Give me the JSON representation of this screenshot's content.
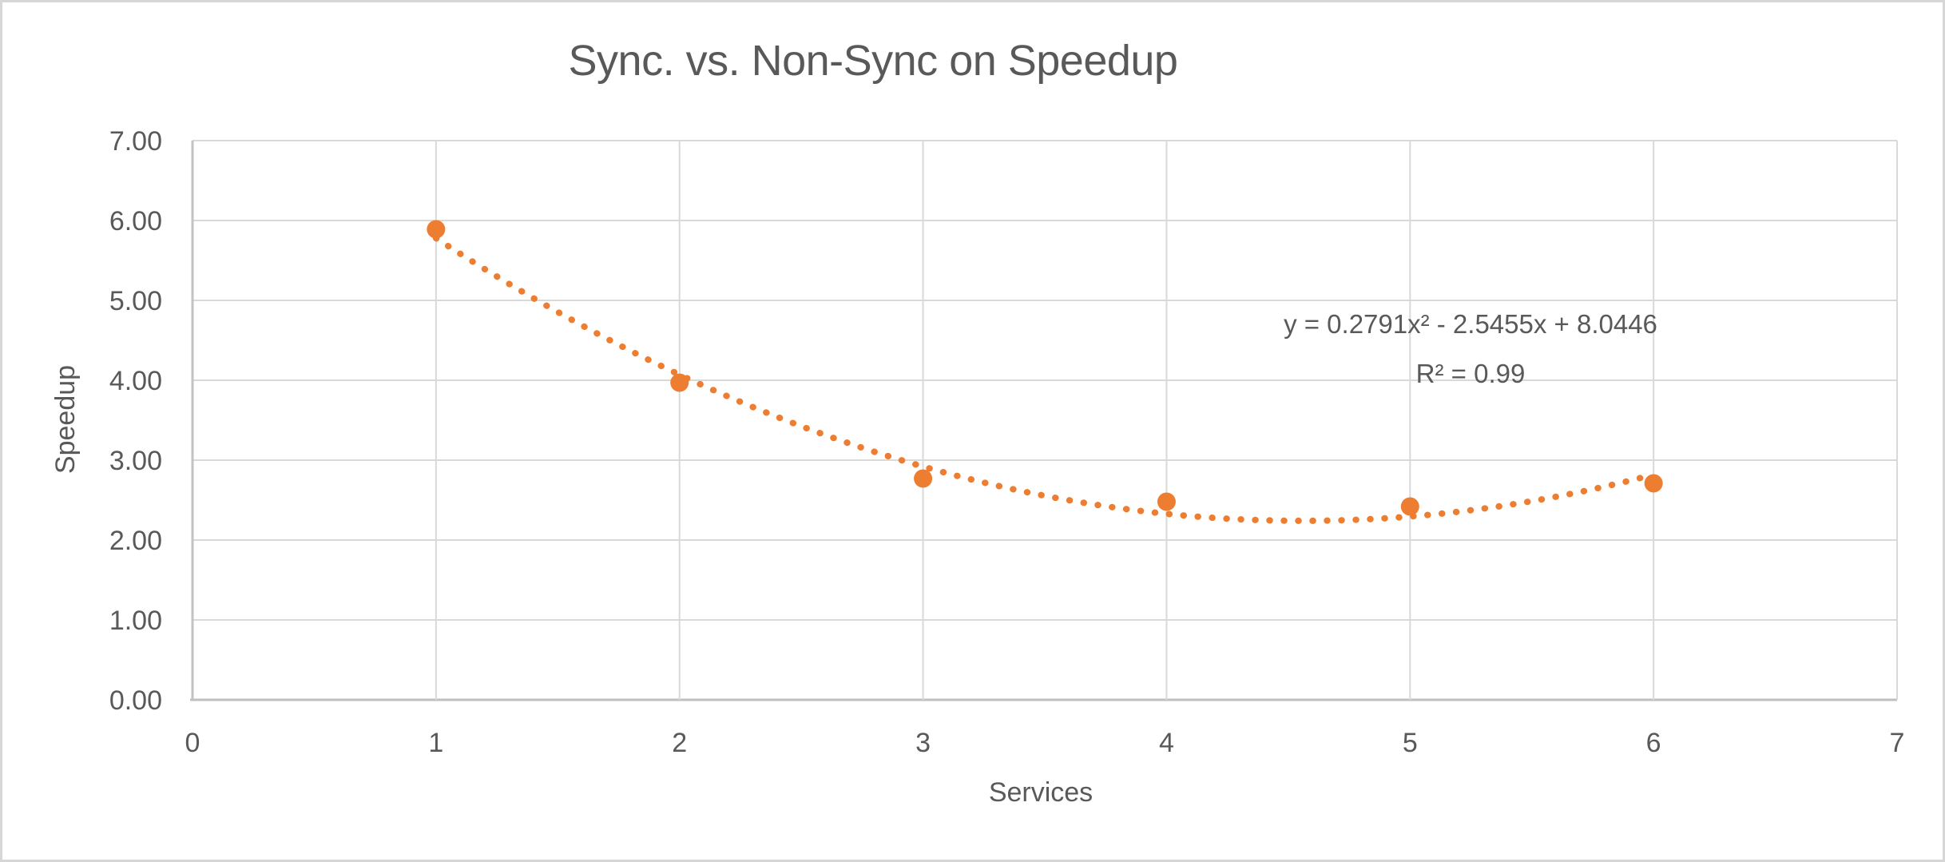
{
  "window": {
    "background_color": "#FFFFFF",
    "border_color": "#D6D6D6"
  },
  "chart_data": {
    "type": "scatter",
    "title": "Sync. vs. Non-Sync on Speedup",
    "xlabel": "Services",
    "ylabel": "Speedup",
    "x": [
      1,
      2,
      3,
      4,
      5,
      6
    ],
    "y": [
      5.89,
      3.97,
      2.77,
      2.48,
      2.42,
      2.71
    ],
    "xlim": [
      0,
      7
    ],
    "ylim": [
      0,
      7
    ],
    "x_ticks": [
      0,
      1,
      2,
      3,
      4,
      5,
      6,
      7
    ],
    "x_tick_labels": [
      "0",
      "1",
      "2",
      "3",
      "4",
      "5",
      "6",
      "7"
    ],
    "y_ticks": [
      0,
      1,
      2,
      3,
      4,
      5,
      6,
      7
    ],
    "y_tick_labels": [
      "0.00",
      "1.00",
      "2.00",
      "3.00",
      "4.00",
      "5.00",
      "6.00",
      "7.00"
    ],
    "grid": true,
    "legend": "none",
    "trendline": {
      "type": "polynomial",
      "order": 2,
      "coefficients": {
        "a": 0.2791,
        "b": -2.5455,
        "c": 8.0446
      },
      "x_range": [
        1,
        6
      ],
      "style": "dotted",
      "equation_label": "y = 0.2791x² - 2.5455x + 8.0446",
      "r_squared_label": "R² = 0.99"
    },
    "colors": {
      "marker": "#ED7D31",
      "trendline": "#ED7D31",
      "gridline": "#D9D9D9",
      "axis_line": "#BFBFBF",
      "zero_gridline": "#C2C2C2",
      "text": "#595959"
    }
  }
}
